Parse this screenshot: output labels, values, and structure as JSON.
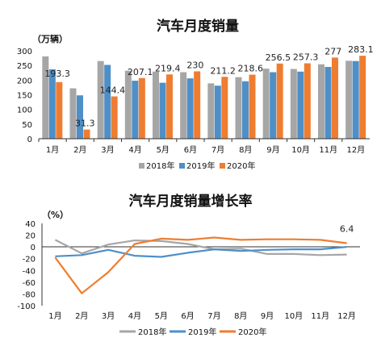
{
  "chart_data": [
    {
      "type": "bar",
      "title": "汽车月度销量",
      "unit_label": "（万辆）",
      "categories": [
        "1月",
        "2月",
        "3月",
        "4月",
        "5月",
        "6月",
        "7月",
        "8月",
        "9月",
        "10月",
        "11月",
        "12月"
      ],
      "ylim": [
        0,
        300
      ],
      "yticks": [
        "0",
        "50",
        "100",
        "150",
        "200",
        "250",
        "300"
      ],
      "legend_position": "bottom",
      "series": [
        {
          "name": "2018年",
          "color": "#a6a6a6",
          "values": [
            281,
            172,
            265,
            232,
            229,
            227,
            189,
            210,
            239,
            238,
            254,
            266
          ]
        },
        {
          "name": "2019年",
          "color": "#4f8fc7",
          "values": [
            237,
            148,
            252,
            198,
            191,
            206,
            181,
            196,
            227,
            229,
            245,
            265
          ]
        },
        {
          "name": "2020年",
          "color": "#ee7d31",
          "values": [
            193.3,
            31.3,
            144.4,
            207.1,
            219.4,
            230,
            211.2,
            218.6,
            256.5,
            257.3,
            277,
            283.1
          ]
        }
      ],
      "data_labels": [
        "193.3",
        "31.3",
        "144.4",
        "207.1",
        "219.4",
        "230",
        "211.2",
        "218.6",
        "256.5",
        "257.3",
        "277",
        "283.1"
      ]
    },
    {
      "type": "line",
      "title": "汽车月度销量增长率",
      "unit_label": "（%）",
      "categories": [
        "1月",
        "2月",
        "3月",
        "4月",
        "5月",
        "6月",
        "7月",
        "8月",
        "9月",
        "10月",
        "11月",
        "12月"
      ],
      "ylim": [
        -100,
        40
      ],
      "yticks": [
        "40",
        "20",
        "0",
        "-20",
        "-40",
        "-60",
        "-80",
        "-100"
      ],
      "legend_position": "bottom",
      "series": [
        {
          "name": "2018年",
          "color": "#a6a6a6",
          "values": [
            12,
            -11,
            4,
            11,
            10,
            5,
            -4,
            -3,
            -12,
            -12,
            -14,
            -13
          ]
        },
        {
          "name": "2019年",
          "color": "#4f8fc7",
          "values": [
            -16,
            -14,
            -5,
            -15,
            -17,
            -10,
            -4,
            -7,
            -5,
            -4,
            -4,
            0
          ]
        },
        {
          "name": "2020年",
          "color": "#ee7d31",
          "values": [
            -18,
            -79,
            -43,
            5,
            14,
            12,
            16,
            12,
            13,
            13,
            12,
            6.4
          ]
        }
      ],
      "data_labels": [
        "6.4"
      ]
    }
  ]
}
